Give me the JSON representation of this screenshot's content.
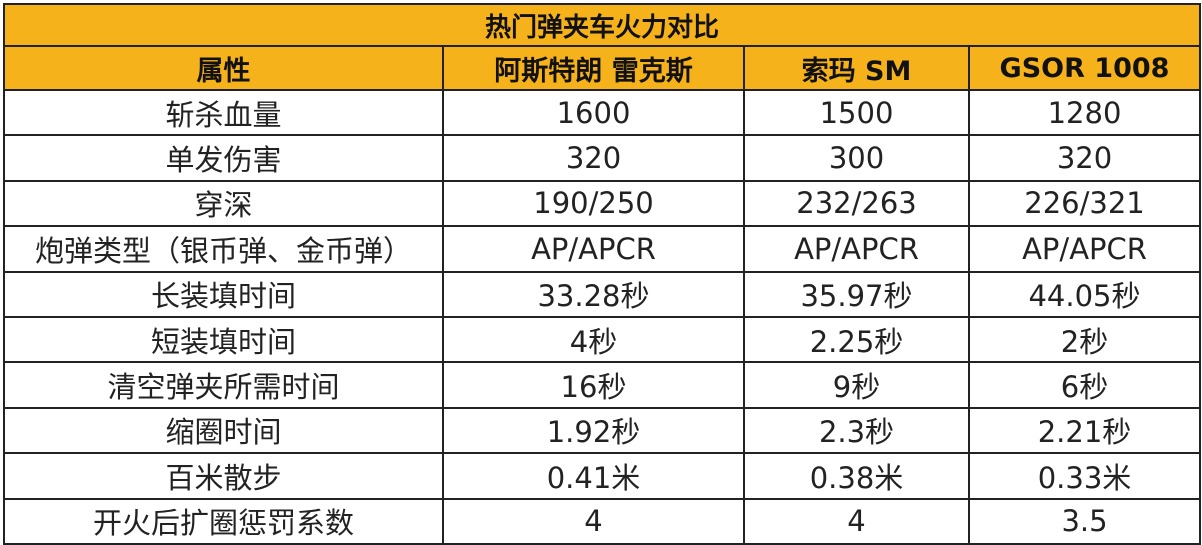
{
  "table": {
    "title": "热门弹夹车火力对比",
    "headers": [
      "属性",
      "阿斯特朗 雷克斯",
      "索玛 SM",
      "GSOR 1008"
    ],
    "highlight_colors": {
      "green": "#1f9a57",
      "red": "#e0221e",
      "header_bg": "#f5b21a"
    },
    "rows": [
      {
        "attr": "斩杀血量",
        "v1": "1600",
        "v1_color": "green",
        "v2": "1500",
        "v3": "1280"
      },
      {
        "attr": "单发伤害",
        "v1": "320",
        "v1_color": "green",
        "v2": "300",
        "v3": "320"
      },
      {
        "attr": "穿深",
        "v1": "190/250",
        "v1_color": "red",
        "v2": "232/263",
        "v3": "226/321"
      },
      {
        "attr": "炮弹类型（银币弹、金币弹）",
        "v1": "AP/APCR",
        "v1_color": "none",
        "v2": "AP/APCR",
        "v3": "AP/APCR"
      },
      {
        "attr": "长装填时间",
        "v1": "33.28秒",
        "v1_color": "green",
        "v2": "35.97秒",
        "v3": "44.05秒"
      },
      {
        "attr": "短装填时间",
        "v1": "4秒",
        "v1_color": "red",
        "v2": "2.25秒",
        "v3": "2秒"
      },
      {
        "attr": "清空弹夹所需时间",
        "v1": "16秒",
        "v1_color": "red",
        "v2": "9秒",
        "v3": "6秒"
      },
      {
        "attr": "缩圈时间",
        "v1": "1.92秒",
        "v1_color": "green",
        "v2": "2.3秒",
        "v3": "2.21秒"
      },
      {
        "attr": "百米散步",
        "v1": "0.41米",
        "v1_color": "red",
        "v2": "0.38米",
        "v3": "0.33米"
      },
      {
        "attr": "开火后扩圈惩罚系数",
        "v1": "4",
        "v1_color": "none",
        "v2": "4",
        "v3": "3.5"
      }
    ]
  }
}
